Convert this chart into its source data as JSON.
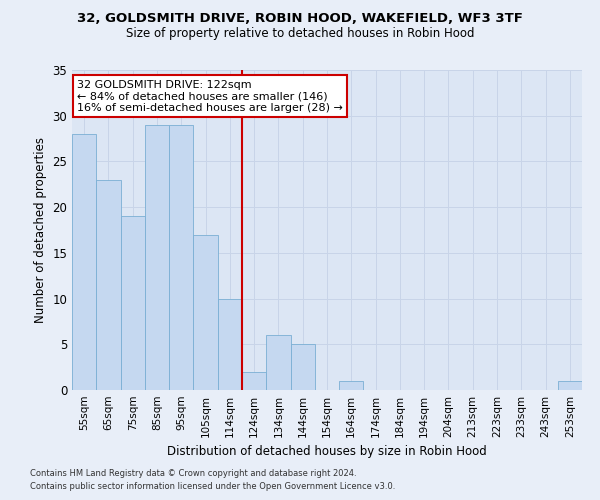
{
  "title1": "32, GOLDSMITH DRIVE, ROBIN HOOD, WAKEFIELD, WF3 3TF",
  "title2": "Size of property relative to detached houses in Robin Hood",
  "xlabel": "Distribution of detached houses by size in Robin Hood",
  "ylabel": "Number of detached properties",
  "annotation_title": "32 GOLDSMITH DRIVE: 122sqm",
  "annotation_line1": "← 84% of detached houses are smaller (146)",
  "annotation_line2": "16% of semi-detached houses are larger (28) →",
  "categories": [
    "55sqm",
    "65sqm",
    "75sqm",
    "85sqm",
    "95sqm",
    "105sqm",
    "114sqm",
    "124sqm",
    "134sqm",
    "144sqm",
    "154sqm",
    "164sqm",
    "174sqm",
    "184sqm",
    "194sqm",
    "204sqm",
    "213sqm",
    "223sqm",
    "233sqm",
    "243sqm",
    "253sqm"
  ],
  "values": [
    28,
    23,
    19,
    29,
    29,
    17,
    10,
    2,
    6,
    5,
    0,
    1,
    0,
    0,
    0,
    0,
    0,
    0,
    0,
    0,
    1
  ],
  "bar_color": "#c5d8f0",
  "bar_edge_color": "#7aafd4",
  "ref_line_color": "#cc0000",
  "ref_line_index": 7,
  "annotation_box_color": "#ffffff",
  "annotation_box_edge": "#cc0000",
  "grid_color": "#c8d4e8",
  "background_color": "#dce6f4",
  "fig_background": "#e8eef8",
  "ylim": [
    0,
    35
  ],
  "yticks": [
    0,
    5,
    10,
    15,
    20,
    25,
    30,
    35
  ],
  "footer1": "Contains HM Land Registry data © Crown copyright and database right 2024.",
  "footer2": "Contains public sector information licensed under the Open Government Licence v3.0."
}
